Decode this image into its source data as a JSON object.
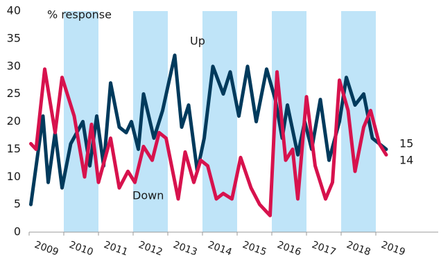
{
  "chart_data": {
    "type": "line",
    "annotations": [
      "% response",
      "Up",
      "Down"
    ],
    "xlim": [
      2009,
      2020.8
    ],
    "xticks": [
      2009,
      2010,
      2011,
      2012,
      2013,
      2014,
      2015,
      2016,
      2017,
      2018,
      2019
    ],
    "shaded_years": [
      2010,
      2012,
      2014,
      2016,
      2018
    ],
    "shade_color": "#bfe4f8",
    "ylim": [
      0,
      40
    ],
    "yticks": [
      0,
      5,
      10,
      15,
      20,
      25,
      30,
      35,
      40
    ],
    "grid": false,
    "series": [
      {
        "name": "Up",
        "color": "#003a5c",
        "x": [
          2009.05,
          2009.4,
          2009.55,
          2009.75,
          2009.95,
          2010.2,
          2010.55,
          2010.75,
          2010.95,
          2011.15,
          2011.35,
          2011.6,
          2011.8,
          2011.95,
          2012.15,
          2012.3,
          2012.6,
          2012.85,
          2013.2,
          2013.4,
          2013.6,
          2013.85,
          2014.05,
          2014.3,
          2014.6,
          2014.8,
          2015.05,
          2015.3,
          2015.55,
          2015.85,
          2016.1,
          2016.3,
          2016.45,
          2016.75,
          2016.95,
          2017.15,
          2017.4,
          2017.65,
          2017.95,
          2018.15,
          2018.4,
          2018.65,
          2018.9,
          2019.3
        ],
        "values": [
          5,
          21,
          9,
          18,
          8,
          16,
          20,
          12,
          21,
          12,
          27,
          19,
          18,
          20,
          15,
          25,
          17,
          22,
          32,
          19,
          23,
          11,
          17,
          30,
          25,
          29,
          21,
          30,
          20,
          29.5,
          24,
          17,
          23,
          14,
          20,
          15,
          24,
          13,
          20,
          28,
          23,
          25,
          17,
          15
        ]
      },
      {
        "name": "Down",
        "color": "#d7124d",
        "x": [
          2009.05,
          2009.2,
          2009.45,
          2009.75,
          2009.95,
          2010.3,
          2010.6,
          2010.8,
          2011.0,
          2011.35,
          2011.6,
          2011.85,
          2012.05,
          2012.3,
          2012.55,
          2012.75,
          2012.95,
          2013.3,
          2013.5,
          2013.75,
          2013.95,
          2014.15,
          2014.4,
          2014.6,
          2014.85,
          2015.1,
          2015.4,
          2015.65,
          2015.95,
          2016.15,
          2016.4,
          2016.6,
          2016.75,
          2017.0,
          2017.25,
          2017.55,
          2017.75,
          2017.95,
          2018.2,
          2018.4,
          2018.65,
          2018.85,
          2019.1,
          2019.3
        ],
        "values": [
          16,
          15,
          29.5,
          18,
          28,
          21,
          10,
          19.5,
          9,
          17,
          8,
          11,
          9,
          15.5,
          13,
          18,
          17,
          6,
          14.5,
          9,
          13,
          12,
          6,
          7,
          6,
          13.5,
          8,
          5,
          3,
          29,
          13,
          15,
          6,
          24.5,
          12,
          6,
          9,
          27.5,
          22,
          11,
          19,
          22,
          16,
          14
        ]
      }
    ]
  }
}
